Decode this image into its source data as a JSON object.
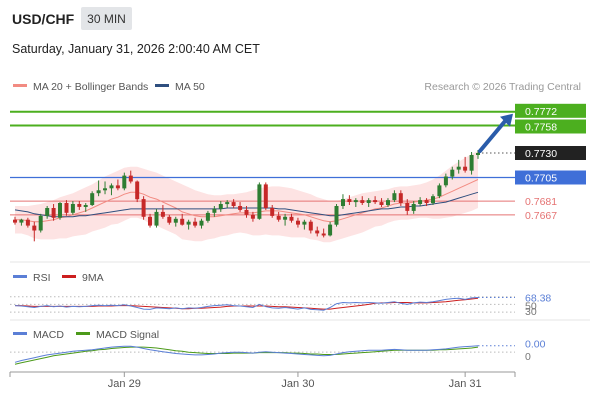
{
  "header": {
    "symbol": "USD/CHF",
    "timeframe": "30 MIN",
    "datetime": "Saturday, January 31, 2026 2:00:40 AM CET"
  },
  "colors": {
    "bull": "#2e7d32",
    "bear": "#c62828",
    "bb_fill": "#fde3e3",
    "ma20": "#f28b82",
    "ma50": "#2f4f7f",
    "resistance": "#4caf1f",
    "pivot": "#3f6fd8",
    "support": "#e57373",
    "arrow": "#2a5caa",
    "rsi": "#5b7fd6",
    "rsi_ma": "#cc1f1f",
    "macd": "#5b7fd6",
    "macd_signal": "#4c9a1a"
  },
  "legend": {
    "main": [
      {
        "label": "MA 20 + Bollinger Bands",
        "color": "#f28b82"
      },
      {
        "label": "MA 50",
        "color": "#2f4f7f"
      }
    ],
    "rsi": [
      {
        "label": "RSI",
        "color": "#5b7fd6"
      },
      {
        "label": "9MA",
        "color": "#cc1f1f"
      }
    ],
    "macd": [
      {
        "label": "MACD",
        "color": "#5b7fd6"
      },
      {
        "label": "MACD Signal",
        "color": "#4c9a1a"
      }
    ]
  },
  "credit": "Research © 2026 Trading Central",
  "chart_data": {
    "type": "candlestick",
    "x_ticks": [
      "Jan 29",
      "Jan 30",
      "Jan 31"
    ],
    "ylim": [
      0.7622,
      0.7785
    ],
    "ohlc": [
      [
        0.7662,
        0.7665,
        0.7657,
        0.7659
      ],
      [
        0.7659,
        0.7663,
        0.7656,
        0.7662
      ],
      [
        0.7662,
        0.7664,
        0.7654,
        0.7656
      ],
      [
        0.7656,
        0.766,
        0.764,
        0.7651
      ],
      [
        0.7651,
        0.7668,
        0.7649,
        0.7666
      ],
      [
        0.7666,
        0.7676,
        0.7663,
        0.7674
      ],
      [
        0.7674,
        0.7678,
        0.7661,
        0.7664
      ],
      [
        0.7664,
        0.768,
        0.7662,
        0.7679
      ],
      [
        0.7679,
        0.7682,
        0.7666,
        0.7669
      ],
      [
        0.7669,
        0.7681,
        0.7667,
        0.7678
      ],
      [
        0.7678,
        0.7681,
        0.7672,
        0.7675
      ],
      [
        0.7675,
        0.7679,
        0.767,
        0.7677
      ],
      [
        0.7677,
        0.7691,
        0.7676,
        0.7689
      ],
      [
        0.7689,
        0.7702,
        0.7686,
        0.7692
      ],
      [
        0.7692,
        0.7701,
        0.7688,
        0.7694
      ],
      [
        0.7694,
        0.7699,
        0.7687,
        0.7697
      ],
      [
        0.7697,
        0.7703,
        0.7692,
        0.7694
      ],
      [
        0.7694,
        0.771,
        0.7692,
        0.7707
      ],
      [
        0.7707,
        0.7712,
        0.7699,
        0.7701
      ],
      [
        0.7701,
        0.7702,
        0.768,
        0.7683
      ],
      [
        0.7683,
        0.7686,
        0.7662,
        0.7665
      ],
      [
        0.7665,
        0.7668,
        0.7654,
        0.7656
      ],
      [
        0.7656,
        0.7673,
        0.7654,
        0.767
      ],
      [
        0.767,
        0.7677,
        0.7663,
        0.7665
      ],
      [
        0.7665,
        0.7667,
        0.7657,
        0.7659
      ],
      [
        0.7659,
        0.7665,
        0.7655,
        0.7663
      ],
      [
        0.7663,
        0.7668,
        0.7656,
        0.7657
      ],
      [
        0.7657,
        0.7662,
        0.7652,
        0.766
      ],
      [
        0.766,
        0.7664,
        0.7654,
        0.7656
      ],
      [
        0.7656,
        0.7663,
        0.7653,
        0.7661
      ],
      [
        0.7661,
        0.7671,
        0.7659,
        0.7669
      ],
      [
        0.7669,
        0.7676,
        0.7665,
        0.7673
      ],
      [
        0.7673,
        0.7681,
        0.767,
        0.7678
      ],
      [
        0.7678,
        0.7682,
        0.7674,
        0.768
      ],
      [
        0.768,
        0.7683,
        0.7674,
        0.7676
      ],
      [
        0.7676,
        0.768,
        0.767,
        0.7672
      ],
      [
        0.7672,
        0.7676,
        0.7664,
        0.7667
      ],
      [
        0.7667,
        0.767,
        0.766,
        0.7663
      ],
      [
        0.7663,
        0.77,
        0.7662,
        0.7698
      ],
      [
        0.7698,
        0.77,
        0.7672,
        0.7674
      ],
      [
        0.7674,
        0.7677,
        0.7664,
        0.7666
      ],
      [
        0.7666,
        0.767,
        0.766,
        0.7662
      ],
      [
        0.7662,
        0.7668,
        0.7656,
        0.7665
      ],
      [
        0.7665,
        0.7668,
        0.7659,
        0.7661
      ],
      [
        0.7661,
        0.7664,
        0.7654,
        0.7657
      ],
      [
        0.7657,
        0.7662,
        0.7652,
        0.766
      ],
      [
        0.766,
        0.7662,
        0.7648,
        0.7651
      ],
      [
        0.7651,
        0.7655,
        0.7645,
        0.7648
      ],
      [
        0.7648,
        0.7653,
        0.7644,
        0.7646
      ],
      [
        0.7646,
        0.766,
        0.7645,
        0.7657
      ],
      [
        0.7657,
        0.7678,
        0.7655,
        0.7676
      ],
      [
        0.7676,
        0.7688,
        0.7673,
        0.7683
      ],
      [
        0.7683,
        0.7687,
        0.7677,
        0.768
      ],
      [
        0.768,
        0.7684,
        0.7675,
        0.7682
      ],
      [
        0.7682,
        0.7686,
        0.7677,
        0.7679
      ],
      [
        0.7679,
        0.7684,
        0.7675,
        0.7682
      ],
      [
        0.7682,
        0.7686,
        0.7678,
        0.768
      ],
      [
        0.768,
        0.7684,
        0.7675,
        0.7677
      ],
      [
        0.7677,
        0.7684,
        0.7675,
        0.7682
      ],
      [
        0.7682,
        0.7692,
        0.768,
        0.7689
      ],
      [
        0.7689,
        0.7692,
        0.7676,
        0.7679
      ],
      [
        0.7679,
        0.7683,
        0.7667,
        0.7671
      ],
      [
        0.7671,
        0.7681,
        0.7668,
        0.7678
      ],
      [
        0.7678,
        0.7685,
        0.7676,
        0.7682
      ],
      [
        0.7682,
        0.7684,
        0.7676,
        0.7679
      ],
      [
        0.7679,
        0.7688,
        0.7677,
        0.7686
      ],
      [
        0.7686,
        0.7699,
        0.7684,
        0.7697
      ],
      [
        0.7697,
        0.7709,
        0.7695,
        0.7706
      ],
      [
        0.7706,
        0.7716,
        0.7703,
        0.7713
      ],
      [
        0.7713,
        0.7723,
        0.7709,
        0.7716
      ],
      [
        0.7716,
        0.7726,
        0.771,
        0.7712
      ],
      [
        0.7712,
        0.7731,
        0.7708,
        0.7728
      ],
      [
        0.7728,
        0.7733,
        0.7724,
        0.773
      ]
    ],
    "ma20": [
      0.7662,
      0.7662,
      0.7661,
      0.766,
      0.766,
      0.7661,
      0.7662,
      0.7664,
      0.7665,
      0.7667,
      0.7669,
      0.7671,
      0.7674,
      0.7677,
      0.768,
      0.7683,
      0.7685,
      0.7688,
      0.769,
      0.769,
      0.7688,
      0.7685,
      0.7683,
      0.768,
      0.7677,
      0.7674,
      0.767,
      0.7668,
      0.7666,
      0.7665,
      0.7665,
      0.7665,
      0.7666,
      0.7667,
      0.7668,
      0.7669,
      0.7669,
      0.7669,
      0.767,
      0.7671,
      0.7671,
      0.7671,
      0.767,
      0.7669,
      0.7668,
      0.7667,
      0.7665,
      0.7663,
      0.7661,
      0.766,
      0.7661,
      0.7663,
      0.7665,
      0.7667,
      0.7669,
      0.7671,
      0.7673,
      0.7674,
      0.7676,
      0.7678,
      0.7679,
      0.7679,
      0.768,
      0.7681,
      0.7682,
      0.7683,
      0.7685,
      0.7688,
      0.7691,
      0.7694,
      0.7697,
      0.77,
      0.7703
    ],
    "bb_upper": [
      0.7676,
      0.7676,
      0.7676,
      0.7677,
      0.7678,
      0.768,
      0.7682,
      0.7685,
      0.7687,
      0.7689,
      0.7692,
      0.7695,
      0.7698,
      0.7702,
      0.7706,
      0.7709,
      0.7712,
      0.7715,
      0.7716,
      0.7716,
      0.7714,
      0.7712,
      0.771,
      0.7707,
      0.7704,
      0.7701,
      0.7698,
      0.7695,
      0.7692,
      0.769,
      0.7688,
      0.7687,
      0.7687,
      0.7688,
      0.7688,
      0.7689,
      0.769,
      0.7692,
      0.7694,
      0.7695,
      0.7696,
      0.7696,
      0.7695,
      0.7694,
      0.7692,
      0.769,
      0.7688,
      0.7685,
      0.7683,
      0.7681,
      0.7681,
      0.7683,
      0.7685,
      0.7687,
      0.7689,
      0.769,
      0.7691,
      0.7692,
      0.7693,
      0.7695,
      0.7696,
      0.7696,
      0.7697,
      0.7698,
      0.77,
      0.7703,
      0.7707,
      0.7712,
      0.7717,
      0.7721,
      0.7725,
      0.7729,
      0.7732
    ],
    "bb_lower": [
      0.7648,
      0.7648,
      0.7646,
      0.7643,
      0.7642,
      0.7642,
      0.7642,
      0.7643,
      0.7643,
      0.7645,
      0.7646,
      0.7647,
      0.765,
      0.7652,
      0.7654,
      0.7657,
      0.7658,
      0.7661,
      0.7664,
      0.7664,
      0.7662,
      0.7658,
      0.7656,
      0.7653,
      0.765,
      0.7647,
      0.7642,
      0.7641,
      0.764,
      0.764,
      0.7642,
      0.7643,
      0.7645,
      0.7646,
      0.7648,
      0.7649,
      0.7648,
      0.7646,
      0.7646,
      0.7647,
      0.7646,
      0.7646,
      0.7645,
      0.7644,
      0.7644,
      0.7644,
      0.7642,
      0.7641,
      0.7639,
      0.7639,
      0.7641,
      0.7643,
      0.7645,
      0.7647,
      0.7649,
      0.7652,
      0.7655,
      0.7656,
      0.7659,
      0.7661,
      0.7662,
      0.7662,
      0.7663,
      0.7664,
      0.7664,
      0.7663,
      0.7663,
      0.7664,
      0.7665,
      0.7667,
      0.7669,
      0.7671,
      0.7674
    ],
    "ma50": [
      0.7672,
      0.7671,
      0.767,
      0.7668,
      0.7667,
      0.7666,
      0.7665,
      0.7665,
      0.7665,
      0.7665,
      0.7666,
      0.7666,
      0.7667,
      0.7668,
      0.7669,
      0.767,
      0.7671,
      0.7672,
      0.7673,
      0.7673,
      0.7673,
      0.7673,
      0.7673,
      0.7673,
      0.7673,
      0.7673,
      0.7673,
      0.7673,
      0.7673,
      0.7673,
      0.7673,
      0.7673,
      0.7673,
      0.7674,
      0.7674,
      0.7674,
      0.7674,
      0.7674,
      0.7674,
      0.7674,
      0.7674,
      0.7673,
      0.7673,
      0.7672,
      0.7671,
      0.767,
      0.7669,
      0.7668,
      0.7667,
      0.7666,
      0.7666,
      0.7667,
      0.7668,
      0.7669,
      0.767,
      0.7671,
      0.7672,
      0.7673,
      0.7673,
      0.7674,
      0.7675,
      0.7675,
      0.7676,
      0.7676,
      0.7677,
      0.7678,
      0.7679,
      0.768,
      0.7682,
      0.7684,
      0.7686,
      0.7688,
      0.769
    ],
    "levels": [
      {
        "value": 0.7772,
        "label": "0.7772",
        "kind": "resistance"
      },
      {
        "value": 0.7758,
        "label": "0.7758",
        "kind": "resistance"
      },
      {
        "value": 0.773,
        "label": "0.7730",
        "kind": "last"
      },
      {
        "value": 0.7705,
        "label": "0.7705",
        "kind": "pivot"
      },
      {
        "value": 0.7681,
        "label": "0.7681",
        "kind": "support"
      },
      {
        "value": 0.7667,
        "label": "0.7667",
        "kind": "support"
      }
    ],
    "arrow": {
      "from": 0.773,
      "to": 0.7772
    },
    "rsi": {
      "ylim": [
        20,
        90
      ],
      "levels": [
        70,
        50,
        30
      ],
      "level_labels": [
        "50",
        "30"
      ],
      "last_label": "68.38",
      "values": [
        47,
        46,
        44,
        42,
        45,
        47,
        44,
        46,
        43,
        45,
        44,
        45,
        47,
        48,
        47,
        48,
        47,
        49,
        46,
        42,
        38,
        37,
        41,
        40,
        39,
        41,
        39,
        41,
        40,
        42,
        45,
        47,
        48,
        49,
        47,
        46,
        44,
        42,
        50,
        44,
        41,
        40,
        42,
        40,
        38,
        41,
        37,
        36,
        35,
        42,
        52,
        55,
        54,
        55,
        54,
        55,
        54,
        53,
        55,
        57,
        53,
        50,
        54,
        56,
        55,
        57,
        60,
        63,
        65,
        66,
        63,
        67,
        68
      ],
      "ma": [
        47,
        47,
        46,
        45,
        45,
        45,
        45,
        45,
        45,
        45,
        45,
        45,
        45,
        46,
        46,
        46,
        47,
        47,
        47,
        46,
        45,
        44,
        43,
        42,
        41,
        40,
        39,
        39,
        40,
        40,
        41,
        42,
        43,
        45,
        46,
        46,
        46,
        46,
        46,
        46,
        45,
        44,
        44,
        43,
        42,
        41,
        40,
        39,
        38,
        38,
        40,
        42,
        44,
        46,
        48,
        50,
        53,
        54,
        54,
        55,
        55,
        55,
        54,
        54,
        54,
        55,
        56,
        57,
        59,
        61,
        62,
        64,
        66
      ]
    },
    "macd": {
      "ylim": [
        -0.003,
        0.0022
      ],
      "zero_label": "0",
      "last_label": "0.00",
      "values": [
        -0.0022,
        -0.0018,
        -0.0015,
        -0.0012,
        -0.0009,
        -0.0006,
        -0.0004,
        -0.0002,
        0.0,
        0.0002,
        0.0003,
        0.0004,
        0.0005,
        0.0007,
        0.0009,
        0.0011,
        0.0012,
        0.0013,
        0.0013,
        0.0011,
        0.0008,
        0.0005,
        0.0003,
        0.0001,
        -0.0001,
        -0.0003,
        -0.0004,
        -0.0005,
        -0.0006,
        -0.0006,
        -0.0005,
        -0.0004,
        -0.0002,
        -0.0001,
        0.0,
        0.0,
        -0.0001,
        -0.0002,
        0.0,
        0.0001,
        0.0,
        -0.0001,
        -0.0002,
        -0.0003,
        -0.0004,
        -0.0005,
        -0.0006,
        -0.0007,
        -0.0008,
        -0.0007,
        -0.0004,
        -0.0001,
        0.0001,
        0.0002,
        0.0003,
        0.0004,
        0.0004,
        0.0004,
        0.0005,
        0.0006,
        0.0005,
        0.0004,
        0.0004,
        0.0004,
        0.0004,
        0.0005,
        0.0006,
        0.0007,
        0.0009,
        0.0011,
        0.0012,
        0.0013,
        0.0014
      ],
      "signal": [
        -0.0026,
        -0.0023,
        -0.002,
        -0.0017,
        -0.0014,
        -0.0011,
        -0.0008,
        -0.0006,
        -0.0004,
        -0.0002,
        0.0,
        0.0002,
        0.0003,
        0.0005,
        0.0006,
        0.0008,
        0.0009,
        0.001,
        0.0011,
        0.0011,
        0.0011,
        0.001,
        0.0009,
        0.0007,
        0.0005,
        0.0003,
        0.0002,
        0.0,
        -0.0001,
        -0.0002,
        -0.0003,
        -0.0003,
        -0.0003,
        -0.0003,
        -0.0002,
        -0.0002,
        -0.0002,
        -0.0002,
        -0.0001,
        -0.0001,
        -0.0001,
        -0.0001,
        -0.0001,
        -0.0002,
        -0.0002,
        -0.0003,
        -0.0004,
        -0.0004,
        -0.0005,
        -0.0005,
        -0.0005,
        -0.0004,
        -0.0003,
        -0.0002,
        -0.0001,
        0.0,
        0.0001,
        0.0002,
        0.0003,
        0.0004,
        0.0004,
        0.0004,
        0.0004,
        0.0004,
        0.0004,
        0.0004,
        0.0005,
        0.0005,
        0.0006,
        0.0007,
        0.0008,
        0.0009,
        0.0011
      ]
    }
  }
}
